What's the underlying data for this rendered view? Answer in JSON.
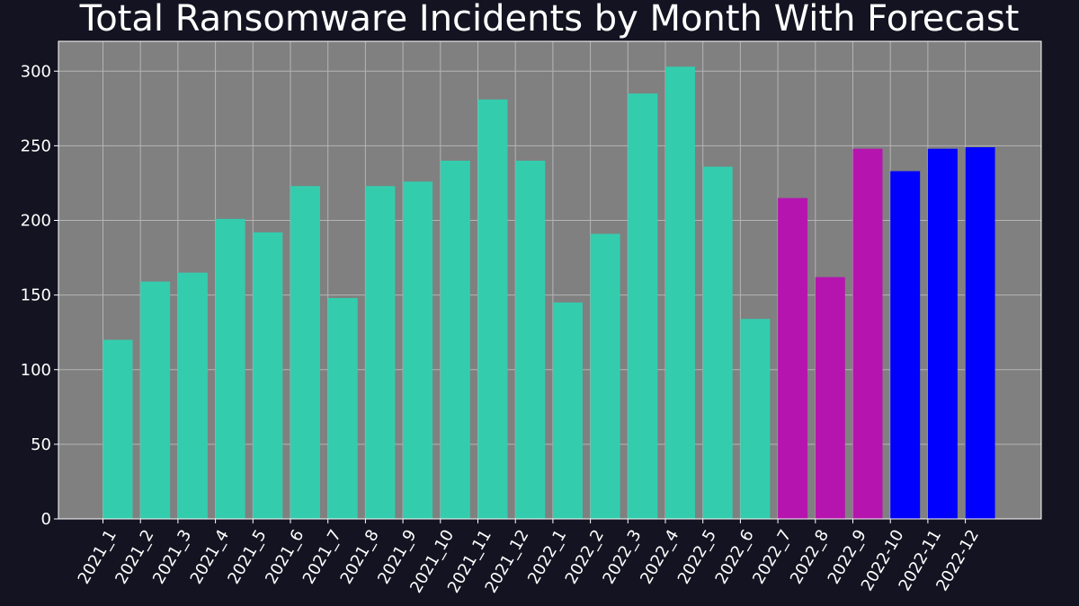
{
  "chart_data": {
    "type": "bar",
    "title": "Total Ransomware Incidents by Month With Forecast",
    "xlabel": "",
    "ylabel": "",
    "ylim": [
      0,
      320
    ],
    "yticks": [
      0,
      50,
      100,
      150,
      200,
      250,
      300
    ],
    "grid": true,
    "categories": [
      "2021_1",
      "2021_2",
      "2021_3",
      "2021_4",
      "2021_5",
      "2021_6",
      "2021_7",
      "2021_8",
      "2021_9",
      "2021_10",
      "2021_11",
      "2021_12",
      "2022_1",
      "2022_2",
      "2022_3",
      "2022_4",
      "2022_5",
      "2022_6",
      "2022_7",
      "2022_8",
      "2022_9",
      "2022-10",
      "2022-11",
      "2022-12"
    ],
    "values": [
      120,
      159,
      165,
      201,
      192,
      223,
      148,
      223,
      226,
      240,
      281,
      240,
      145,
      191,
      285,
      303,
      236,
      134,
      215,
      162,
      248,
      233,
      248,
      249
    ],
    "bar_colors": [
      "#33cdae",
      "#33cdae",
      "#33cdae",
      "#33cdae",
      "#33cdae",
      "#33cdae",
      "#33cdae",
      "#33cdae",
      "#33cdae",
      "#33cdae",
      "#33cdae",
      "#33cdae",
      "#33cdae",
      "#33cdae",
      "#33cdae",
      "#33cdae",
      "#33cdae",
      "#33cdae",
      "#b515ae",
      "#b515ae",
      "#b515ae",
      "#0000ff",
      "#0000ff",
      "#0000ff"
    ],
    "colors": {
      "page_background": "#141321",
      "plot_background": "#808080",
      "grid": "#b4b4b4",
      "text": "#ffffff"
    }
  }
}
